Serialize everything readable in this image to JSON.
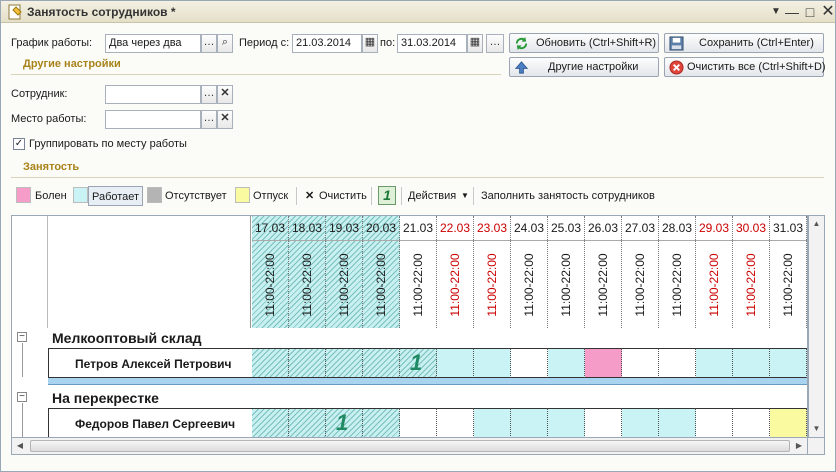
{
  "window": {
    "title": "Занятость сотрудников *"
  },
  "filters": {
    "schedule_label": "График работы:",
    "schedule_value": "Два через два",
    "period_label": "Период с:",
    "period_from": "21.03.2014",
    "period_to_label": "по:",
    "period_to": "31.03.2014",
    "employee_label": "Сотрудник:",
    "employee_value": "",
    "workplace_label": "Место работы:",
    "workplace_value": "",
    "group_checkbox_label": "Группировать по месту работы",
    "group_checked": true
  },
  "sections": {
    "other_settings": "Другие настройки",
    "occupancy": "Занятость"
  },
  "buttons": {
    "refresh": "Обновить (Ctrl+Shift+R)",
    "save": "Сохранить (Ctrl+Enter)",
    "other_settings": "Другие настройки",
    "clear_all": "Очистить все (Ctrl+Shift+D)"
  },
  "toolbar": {
    "sick": "Болен",
    "working": "Работает",
    "absent": "Отсутствует",
    "vacation": "Отпуск",
    "clear": "Очистить",
    "actions": "Действия",
    "fill": "Заполнить занятость сотрудников",
    "mark": "1"
  },
  "colors": {
    "sick": "#f59dc8",
    "working": "#c9f3f5",
    "absent": "#b4b4b4",
    "vacation": "#fafaa0",
    "section": "#a8831a",
    "weekend": "#cc0000"
  },
  "grid": {
    "days": [
      {
        "date": "17.03",
        "time": "11:00-22:00",
        "weekend": false,
        "past": true
      },
      {
        "date": "18.03",
        "time": "11:00-22:00",
        "weekend": false,
        "past": true
      },
      {
        "date": "19.03",
        "time": "11:00-22:00",
        "weekend": false,
        "past": true
      },
      {
        "date": "20.03",
        "time": "11:00-22:00",
        "weekend": false,
        "past": true
      },
      {
        "date": "21.03",
        "time": "11:00-22:00",
        "weekend": false,
        "past": false
      },
      {
        "date": "22.03",
        "time": "11:00-22:00",
        "weekend": true,
        "past": false
      },
      {
        "date": "23.03",
        "time": "11:00-22:00",
        "weekend": true,
        "past": false
      },
      {
        "date": "24.03",
        "time": "11:00-22:00",
        "weekend": false,
        "past": false
      },
      {
        "date": "25.03",
        "time": "11:00-22:00",
        "weekend": false,
        "past": false
      },
      {
        "date": "26.03",
        "time": "11:00-22:00",
        "weekend": false,
        "past": false
      },
      {
        "date": "27.03",
        "time": "11:00-22:00",
        "weekend": false,
        "past": false
      },
      {
        "date": "28.03",
        "time": "11:00-22:00",
        "weekend": false,
        "past": false
      },
      {
        "date": "29.03",
        "time": "11:00-22:00",
        "weekend": true,
        "past": false
      },
      {
        "date": "30.03",
        "time": "11:00-22:00",
        "weekend": true,
        "past": false
      },
      {
        "date": "31.03",
        "time": "11:00-22:00",
        "weekend": false,
        "past": false
      }
    ],
    "groups": [
      {
        "name": "Мелкооптовый склад",
        "employees": [
          {
            "name": "Петров Алексей Петрович",
            "cells": [
              "past",
              "past",
              "past",
              "past",
              "mark",
              "cyan",
              "cyan",
              "white",
              "cyan",
              "pink",
              "white",
              "white",
              "cyan",
              "cyan",
              "cyan"
            ]
          }
        ]
      },
      {
        "name": "На перекрестке",
        "employees": [
          {
            "name": "Федоров Павел Сергеевич",
            "cells": [
              "past",
              "past",
              "mark",
              "past",
              "white",
              "white",
              "cyan",
              "cyan",
              "cyan",
              "white",
              "cyan",
              "cyan",
              "white",
              "white",
              "yellow"
            ]
          }
        ]
      }
    ]
  }
}
